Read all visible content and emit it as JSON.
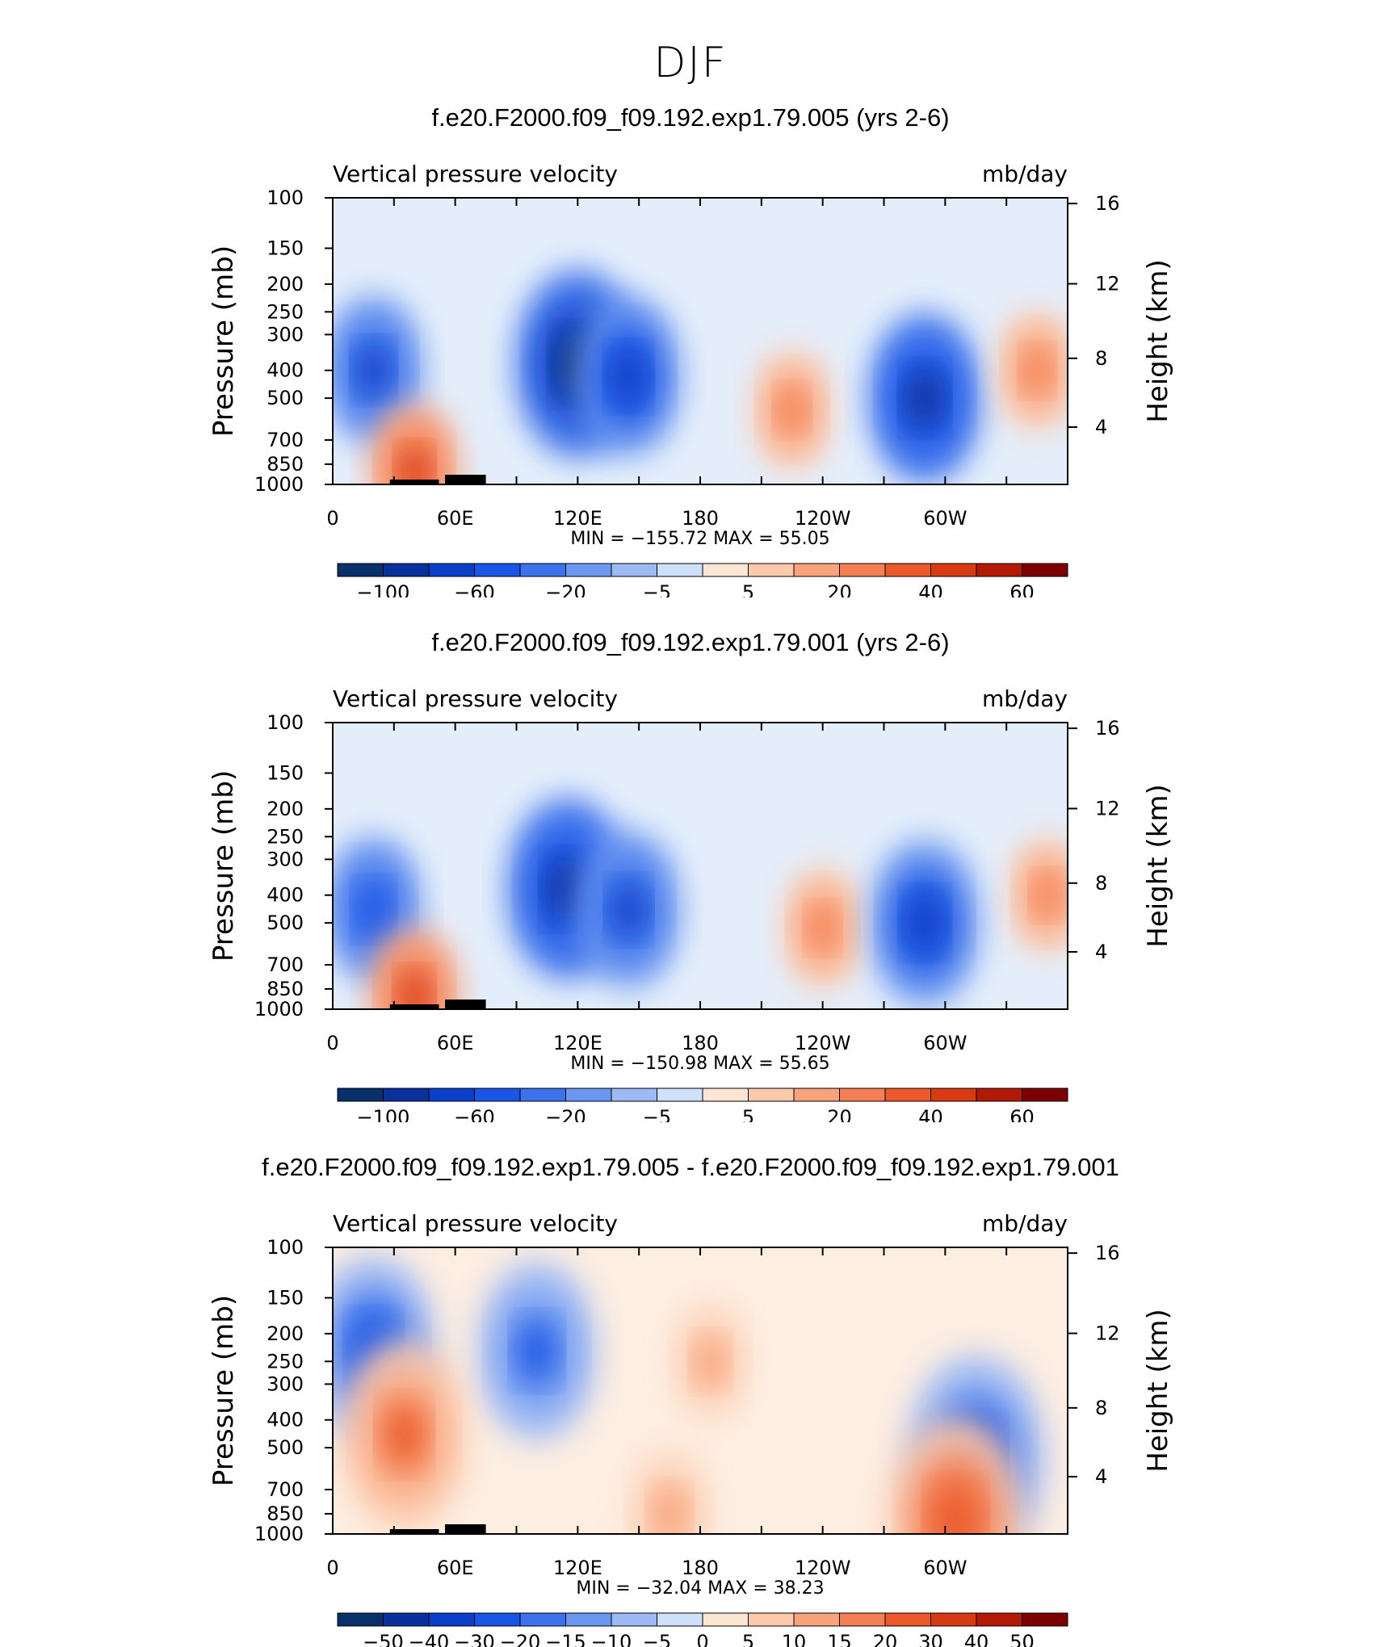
{
  "figure": {
    "title": "DJF"
  },
  "chart_data": [
    {
      "type": "heatmap",
      "title": "f.e20.F2000.f09_f09.192.exp1.79.005 (yrs 2-6)",
      "variable": "Vertical pressure velocity",
      "units": "mb/day",
      "ylabel": "Pressure (mb)",
      "y2label": "Height (km)",
      "x_ticks": [
        "0",
        "60E",
        "120E",
        "180",
        "120W",
        "60W"
      ],
      "y_ticks": [
        "100",
        "150",
        "200",
        "250",
        "300",
        "400",
        "500",
        "700",
        "850",
        "1000"
      ],
      "y2_ticks": [
        "16",
        "12",
        "8",
        "4"
      ],
      "stats": "MIN = −155.72   MAX =   55.05",
      "min": -155.72,
      "max": 55.05,
      "colorbar_levels": [
        -100,
        -80,
        -60,
        -40,
        -20,
        -10,
        -5,
        0,
        5,
        10,
        20,
        30,
        40,
        50,
        60
      ],
      "colorbar_labels": [
        "−100",
        "−60",
        "−20",
        "−5",
        "5",
        "20",
        "40",
        "60"
      ],
      "features": [
        {
          "lon": 20,
          "p": 400,
          "v": -60
        },
        {
          "lon": 40,
          "p": 900,
          "v": 45
        },
        {
          "lon": 120,
          "p": 380,
          "v": -100
        },
        {
          "lon": 145,
          "p": 420,
          "v": -70
        },
        {
          "lon": 225,
          "p": 550,
          "v": 30
        },
        {
          "lon": 290,
          "p": 500,
          "v": -80
        },
        {
          "lon": 345,
          "p": 400,
          "v": 30
        }
      ]
    },
    {
      "type": "heatmap",
      "title": "f.e20.F2000.f09_f09.192.exp1.79.001 (yrs 2-6)",
      "variable": "Vertical pressure velocity",
      "units": "mb/day",
      "ylabel": "Pressure (mb)",
      "y2label": "Height (km)",
      "x_ticks": [
        "0",
        "60E",
        "120E",
        "180",
        "120W",
        "60W"
      ],
      "y_ticks": [
        "100",
        "150",
        "200",
        "250",
        "300",
        "400",
        "500",
        "700",
        "850",
        "1000"
      ],
      "y2_ticks": [
        "16",
        "12",
        "8",
        "4"
      ],
      "stats": "MIN = −150.98   MAX =   55.65",
      "min": -150.98,
      "max": 55.65,
      "colorbar_levels": [
        -100,
        -80,
        -60,
        -40,
        -20,
        -10,
        -5,
        0,
        5,
        10,
        20,
        30,
        40,
        50,
        60
      ],
      "colorbar_labels": [
        "−100",
        "−60",
        "−20",
        "−5",
        "5",
        "20",
        "40",
        "60"
      ],
      "features": [
        {
          "lon": 20,
          "p": 450,
          "v": -55
        },
        {
          "lon": 40,
          "p": 900,
          "v": 45
        },
        {
          "lon": 115,
          "p": 380,
          "v": -90
        },
        {
          "lon": 145,
          "p": 450,
          "v": -65
        },
        {
          "lon": 240,
          "p": 520,
          "v": 30
        },
        {
          "lon": 290,
          "p": 500,
          "v": -75
        },
        {
          "lon": 350,
          "p": 400,
          "v": 25
        }
      ]
    },
    {
      "type": "heatmap",
      "title": "f.e20.F2000.f09_f09.192.exp1.79.005 - f.e20.F2000.f09_f09.192.exp1.79.001",
      "variable": "Vertical pressure velocity",
      "units": "mb/day",
      "ylabel": "Pressure (mb)",
      "y2label": "Height (km)",
      "x_ticks": [
        "0",
        "60E",
        "120E",
        "180",
        "120W",
        "60W"
      ],
      "y_ticks": [
        "100",
        "150",
        "200",
        "250",
        "300",
        "400",
        "500",
        "700",
        "850",
        "1000"
      ],
      "y2_ticks": [
        "16",
        "12",
        "8",
        "4"
      ],
      "stats": "MIN = −32.04   MAX =   38.23",
      "min": -32.04,
      "max": 38.23,
      "colorbar_levels": [
        -50,
        -40,
        -30,
        -20,
        -15,
        -10,
        -5,
        0,
        5,
        10,
        15,
        20,
        30,
        40,
        50
      ],
      "colorbar_labels": [
        "−50",
        "−40",
        "−30",
        "−20",
        "−15",
        "−10",
        "−5",
        "0",
        "5",
        "10",
        "15",
        "20",
        "30",
        "40",
        "50"
      ],
      "features": [
        {
          "lon": 20,
          "p": 230,
          "v": -25
        },
        {
          "lon": 35,
          "p": 450,
          "v": 25
        },
        {
          "lon": 100,
          "p": 230,
          "v": -22
        },
        {
          "lon": 185,
          "p": 250,
          "v": 12
        },
        {
          "lon": 165,
          "p": 850,
          "v": 15
        },
        {
          "lon": 315,
          "p": 550,
          "v": -30
        },
        {
          "lon": 305,
          "p": 900,
          "v": 30
        }
      ]
    }
  ]
}
